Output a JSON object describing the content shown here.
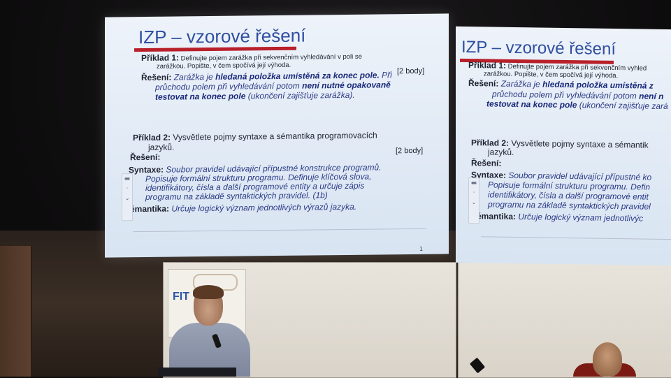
{
  "main_slide": {
    "title": "IZP – vzorové řešení",
    "p1_label": "Příklad 1:",
    "p1_line1": "Definujte pojem zarážka při sekvenčním vyhledávání v poli se",
    "p1_line2": "zarážkou. Popište, v čem spočívá její výhoda.",
    "p1_points": "[2 body]",
    "r1_label": "Řešení:",
    "r1_a": "Zarážka je",
    "r1_b": "hledaná položka umístěná za konec pole.",
    "r1_c": "Při",
    "r1_line2": "průchodu polem při vyhledávání potom",
    "r1_line2b": "není nutné opakovaně",
    "r1_line3a": "testovat na konec pole",
    "r1_line3b": "(ukončení zajišťuje zarážka).",
    "p2_label": "Příklad 2:",
    "p2_line1": "Vysvětlete pojmy syntaxe a sémantika programovacích",
    "p2_line2": "jazyků.",
    "p2_points": "[2 body]",
    "r2_label": "Řešení:",
    "syn_label": "Syntaxe:",
    "syn_line1": "Soubor pravidel udávající přípustné konstrukce programů.",
    "syn_line2": "Popisuje  formální strukturu programu. Definuje klíčová slova,",
    "syn_line3": "identifikátory, čísla a další programové entity a určuje zápis",
    "syn_line4": "programu na základě syntaktických pravidel. (1b)",
    "sem_label": "Sémantika:",
    "sem_text": "Určuje logický význam jednotlivých výrazů jazyka.",
    "page_number": "1"
  },
  "side_slide": {
    "title": "IZP – vzorové řešení",
    "p1_label": "Příklad 1:",
    "p1_line1": "Definujte pojem zarážka při sekvenčním vyhled",
    "p1_line2": "zarážkou. Popište, v čem spočívá její výhoda.",
    "r1_label": "Řešení:",
    "r1_a": "Zarážka je",
    "r1_b": "hledaná položka umístěná z",
    "r1_line2": "průchodu polem při vyhledávání potom",
    "r1_line2b": "není n",
    "r1_line3a": "testovat na konec pole",
    "r1_line3b": "(ukončení zajišťuje zará",
    "p2_label": "Příklad 2:",
    "p2_line1": "Vysvětlete pojmy syntaxe a sémantik",
    "p2_line2": "jazyků.",
    "r2_label": "Řešení:",
    "syn_label": "Syntaxe:",
    "syn_line1": "Soubor pravidel udávající přípustné ko",
    "syn_line2": "Popisuje  formální strukturu programu. Defin",
    "syn_line3": "identifikátory, čísla a další programové entit",
    "syn_line4": "programu na základě syntaktických pravidel",
    "sem_label": "Sémantika:",
    "sem_text": "Určuje logický význam jednotlivýc"
  },
  "poster": {
    "logo_text": "FIT"
  },
  "colors": {
    "title_blue": "#2f4fa0",
    "rule_red": "#b8202a",
    "slide_bg": "#e4ecf6"
  }
}
